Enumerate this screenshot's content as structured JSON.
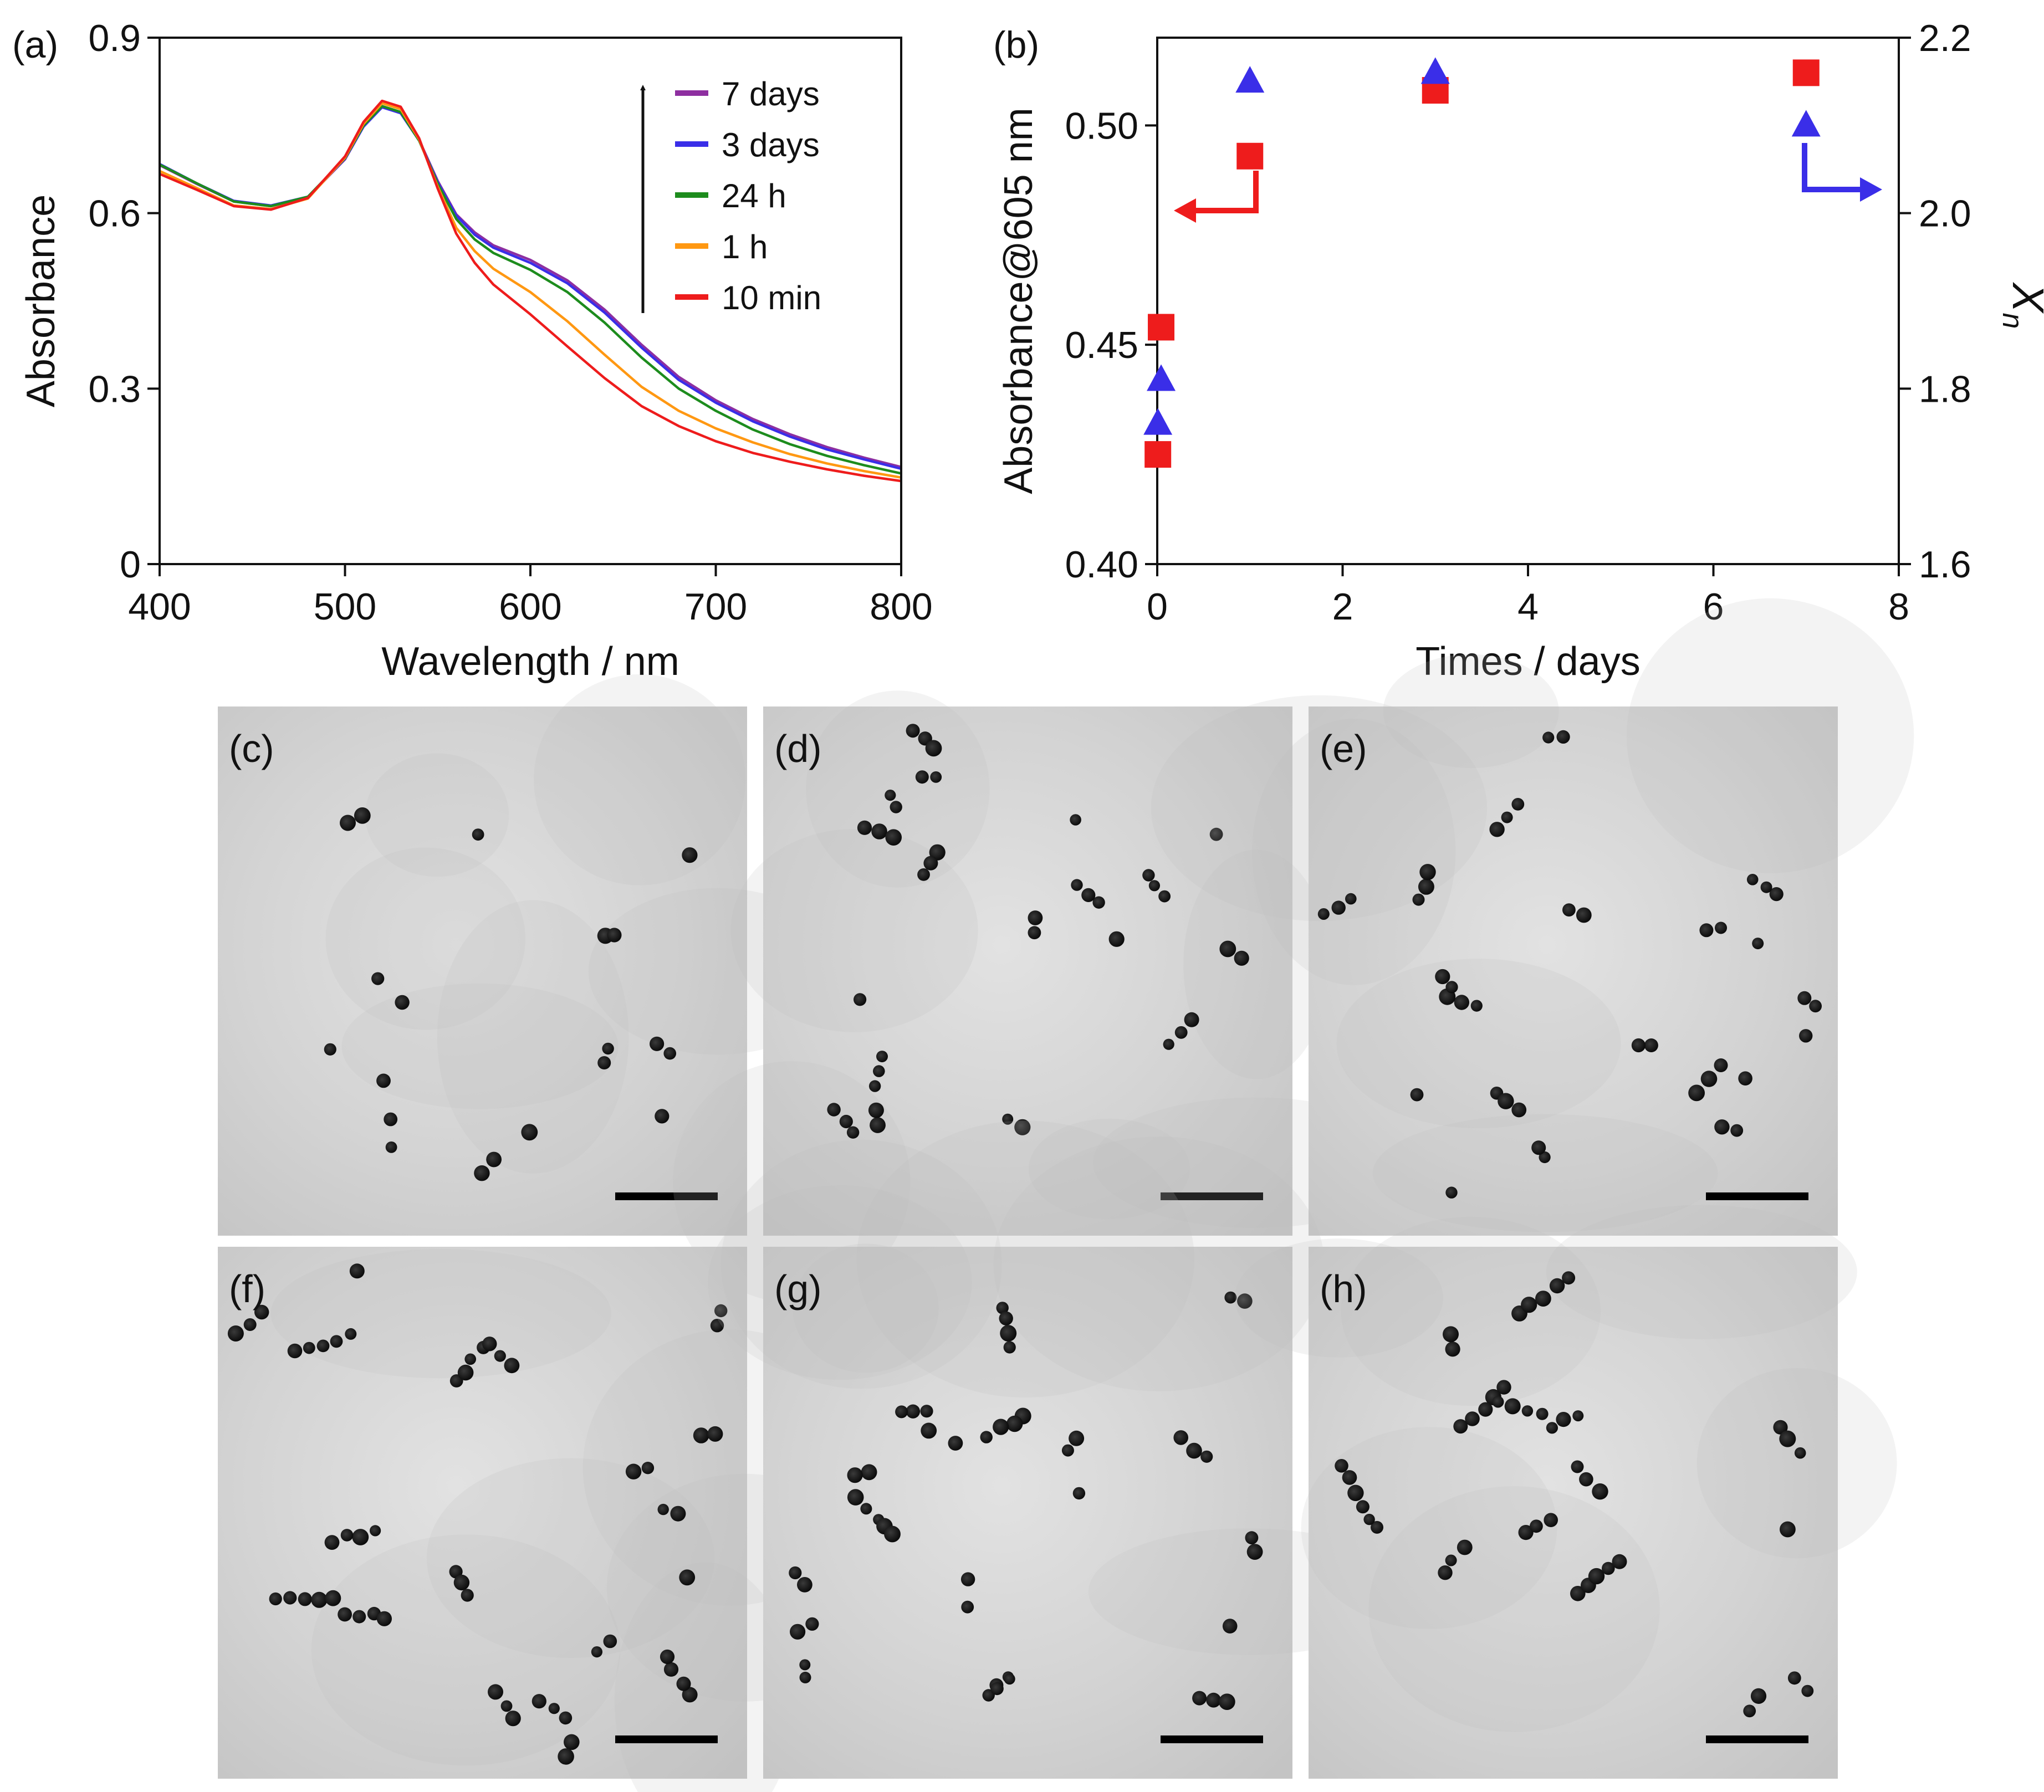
{
  "chart_data": [
    {
      "panel_label": "(a)",
      "type": "line",
      "xlabel": "Wavelength / nm",
      "ylabel": "Absorbance",
      "xlim": [
        400,
        800
      ],
      "ylim": [
        0,
        0.9
      ],
      "x_ticks": [
        "400",
        "500",
        "600",
        "700",
        "800"
      ],
      "y_ticks": [
        "0",
        "0.3",
        "0.6",
        "0.9"
      ],
      "legend_position": "top-right",
      "arrow_direction": "up",
      "series": [
        {
          "name": "7 days",
          "color": "#8e2fa0",
          "points": [
            [
              400,
              0.682
            ],
            [
              420,
              0.65
            ],
            [
              440,
              0.62
            ],
            [
              460,
              0.612
            ],
            [
              480,
              0.627
            ],
            [
              500,
              0.692
            ],
            [
              510,
              0.748
            ],
            [
              520,
              0.782
            ],
            [
              530,
              0.772
            ],
            [
              540,
              0.725
            ],
            [
              550,
              0.655
            ],
            [
              560,
              0.598
            ],
            [
              570,
              0.567
            ],
            [
              580,
              0.545
            ],
            [
              600,
              0.52
            ],
            [
              620,
              0.485
            ],
            [
              640,
              0.435
            ],
            [
              660,
              0.375
            ],
            [
              680,
              0.32
            ],
            [
              700,
              0.28
            ],
            [
              720,
              0.248
            ],
            [
              740,
              0.222
            ],
            [
              760,
              0.2
            ],
            [
              780,
              0.182
            ],
            [
              800,
              0.166
            ]
          ]
        },
        {
          "name": "3 days",
          "color": "#3a2ee8",
          "points": [
            [
              400,
              0.684
            ],
            [
              420,
              0.651
            ],
            [
              440,
              0.621
            ],
            [
              460,
              0.613
            ],
            [
              480,
              0.628
            ],
            [
              500,
              0.693
            ],
            [
              510,
              0.748
            ],
            [
              520,
              0.781
            ],
            [
              530,
              0.771
            ],
            [
              540,
              0.724
            ],
            [
              550,
              0.653
            ],
            [
              560,
              0.596
            ],
            [
              570,
              0.563
            ],
            [
              580,
              0.541
            ],
            [
              600,
              0.515
            ],
            [
              620,
              0.48
            ],
            [
              640,
              0.43
            ],
            [
              660,
              0.37
            ],
            [
              680,
              0.315
            ],
            [
              700,
              0.276
            ],
            [
              720,
              0.244
            ],
            [
              740,
              0.218
            ],
            [
              760,
              0.196
            ],
            [
              780,
              0.179
            ],
            [
              800,
              0.163
            ]
          ]
        },
        {
          "name": "24 h",
          "color": "#1d8c1d",
          "points": [
            [
              400,
              0.683
            ],
            [
              420,
              0.651
            ],
            [
              440,
              0.62
            ],
            [
              460,
              0.612
            ],
            [
              480,
              0.628
            ],
            [
              500,
              0.694
            ],
            [
              510,
              0.75
            ],
            [
              520,
              0.783
            ],
            [
              530,
              0.773
            ],
            [
              540,
              0.724
            ],
            [
              550,
              0.65
            ],
            [
              560,
              0.59
            ],
            [
              570,
              0.555
            ],
            [
              580,
              0.532
            ],
            [
              600,
              0.503
            ],
            [
              620,
              0.465
            ],
            [
              640,
              0.413
            ],
            [
              660,
              0.353
            ],
            [
              680,
              0.3
            ],
            [
              700,
              0.262
            ],
            [
              720,
              0.23
            ],
            [
              740,
              0.205
            ],
            [
              760,
              0.185
            ],
            [
              780,
              0.169
            ],
            [
              800,
              0.155
            ]
          ]
        },
        {
          "name": "1 h",
          "color": "#ff9812",
          "points": [
            [
              400,
              0.672
            ],
            [
              420,
              0.643
            ],
            [
              440,
              0.613
            ],
            [
              460,
              0.607
            ],
            [
              480,
              0.625
            ],
            [
              500,
              0.695
            ],
            [
              510,
              0.753
            ],
            [
              520,
              0.788
            ],
            [
              530,
              0.778
            ],
            [
              540,
              0.726
            ],
            [
              550,
              0.645
            ],
            [
              560,
              0.575
            ],
            [
              570,
              0.535
            ],
            [
              580,
              0.505
            ],
            [
              600,
              0.465
            ],
            [
              620,
              0.415
            ],
            [
              640,
              0.358
            ],
            [
              660,
              0.303
            ],
            [
              680,
              0.262
            ],
            [
              700,
              0.232
            ],
            [
              720,
              0.208
            ],
            [
              740,
              0.188
            ],
            [
              760,
              0.172
            ],
            [
              780,
              0.159
            ],
            [
              800,
              0.148
            ]
          ]
        },
        {
          "name": "10 min",
          "color": "#ee1c1c",
          "points": [
            [
              400,
              0.667
            ],
            [
              420,
              0.64
            ],
            [
              440,
              0.612
            ],
            [
              460,
              0.606
            ],
            [
              480,
              0.626
            ],
            [
              500,
              0.697
            ],
            [
              510,
              0.756
            ],
            [
              520,
              0.792
            ],
            [
              530,
              0.782
            ],
            [
              540,
              0.728
            ],
            [
              550,
              0.642
            ],
            [
              560,
              0.565
            ],
            [
              570,
              0.515
            ],
            [
              580,
              0.478
            ],
            [
              600,
              0.427
            ],
            [
              620,
              0.372
            ],
            [
              640,
              0.318
            ],
            [
              660,
              0.27
            ],
            [
              680,
              0.236
            ],
            [
              700,
              0.21
            ],
            [
              720,
              0.19
            ],
            [
              740,
              0.175
            ],
            [
              760,
              0.162
            ],
            [
              780,
              0.151
            ],
            [
              800,
              0.142
            ]
          ]
        }
      ]
    },
    {
      "panel_label": "(b)",
      "type": "scatter",
      "xlabel": "Times / days",
      "ylabel": "Absorbance@605 nm",
      "y2label": "X",
      "y2label_subscript": "n",
      "xlim": [
        0,
        8
      ],
      "ylim": [
        0.4,
        0.52
      ],
      "y2lim": [
        1.6,
        2.2
      ],
      "x_ticks": [
        "0",
        "2",
        "4",
        "6",
        "8"
      ],
      "y_ticks": [
        "0.40",
        "0.45",
        "0.50"
      ],
      "y2_ticks": [
        "1.6",
        "1.8",
        "2.0",
        "2.2"
      ],
      "series": [
        {
          "name": "Absorbance@605 nm",
          "axis": "left",
          "marker": "square",
          "color": "#ee1c1c",
          "x": [
            0.007,
            0.042,
            1,
            3,
            7
          ],
          "y": [
            0.425,
            0.454,
            0.493,
            0.508,
            0.512
          ]
        },
        {
          "name": "Xn",
          "axis": "right",
          "marker": "triangle",
          "color": "#3a2ee8",
          "x": [
            0.007,
            0.042,
            1,
            3,
            7
          ],
          "y": [
            1.76,
            1.81,
            2.15,
            2.16,
            2.1
          ]
        }
      ]
    }
  ],
  "tem_panels": [
    {
      "label": "(c)"
    },
    {
      "label": "(d)"
    },
    {
      "label": "(e)"
    },
    {
      "label": "(f)"
    },
    {
      "label": "(g)"
    },
    {
      "label": "(h)"
    }
  ]
}
